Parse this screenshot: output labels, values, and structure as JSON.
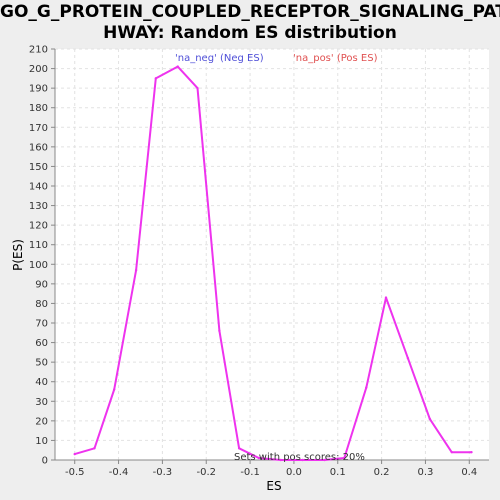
{
  "chart_data": {
    "type": "line",
    "title_lines": [
      "GO_G_PROTEIN_COUPLED_RECEPTOR_SIGNALING_PAT",
      "HWAY: Random ES distribution"
    ],
    "xlabel": "ES",
    "ylabel": "P(ES)",
    "xlim": [
      -0.545,
      0.445
    ],
    "ylim": [
      0,
      210
    ],
    "xticks": [
      -0.5,
      -0.4,
      -0.3,
      -0.2,
      -0.1,
      0.0,
      0.1,
      0.2,
      0.3,
      0.4
    ],
    "xtick_labels": [
      "-0.5",
      "-0.4",
      "-0.3",
      "-0.2",
      "-0.1",
      "0.0",
      "0.1",
      "0.2",
      "0.3",
      "0.4"
    ],
    "yticks": [
      0,
      10,
      20,
      30,
      40,
      50,
      60,
      70,
      80,
      90,
      100,
      110,
      120,
      130,
      140,
      150,
      160,
      170,
      180,
      190,
      200,
      210
    ],
    "grid": true,
    "legend": [
      {
        "label": "'na_neg' (Neg ES)",
        "color": "#5050d8"
      },
      {
        "label": "'na_pos' (Pos ES)",
        "color": "#e05050"
      }
    ],
    "series": [
      {
        "color": "#ee33ee",
        "x": [
          -0.5,
          -0.455,
          -0.41,
          -0.36,
          -0.315,
          -0.265,
          -0.22,
          -0.17,
          -0.125,
          -0.08,
          -0.03,
          0.02,
          0.07,
          0.115,
          0.165,
          0.21,
          0.26,
          0.31,
          0.36,
          0.405
        ],
        "y": [
          3,
          6,
          36,
          97,
          195,
          201,
          190,
          66,
          6,
          1,
          0,
          0,
          0,
          1,
          37,
          83,
          52,
          21,
          4,
          4
        ]
      }
    ],
    "annotation": "Sets with pos scores: 20%"
  }
}
